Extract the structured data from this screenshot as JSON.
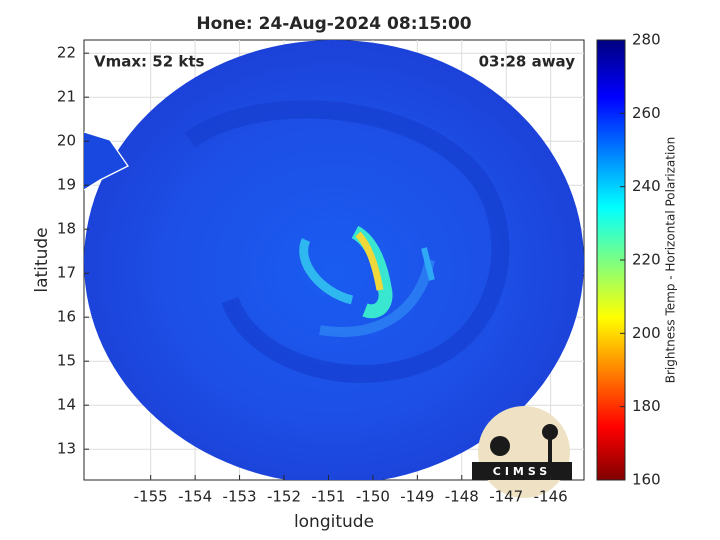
{
  "title": "Hone: 24-Aug-2024 08:15:00",
  "annotations": {
    "vmax": "Vmax: 52 kts",
    "away": "03:28 away",
    "logo": "CIMSS"
  },
  "axes": {
    "xlabel": "longitude",
    "ylabel": "latitude",
    "xlim": [
      -156.5,
      -145.25
    ],
    "ylim": [
      12.3,
      22.3
    ],
    "xticks": [
      -155,
      -154,
      -153,
      -152,
      -151,
      -150,
      -149,
      -148,
      -147,
      -146
    ],
    "yticks": [
      13,
      14,
      15,
      16,
      17,
      18,
      19,
      20,
      21,
      22
    ],
    "grid": true
  },
  "colorbar": {
    "label": "Brightness Temp - Horizontal Polarization",
    "lim": [
      160,
      280
    ],
    "ticks": [
      160,
      180,
      200,
      220,
      240,
      260,
      280
    ]
  }
}
